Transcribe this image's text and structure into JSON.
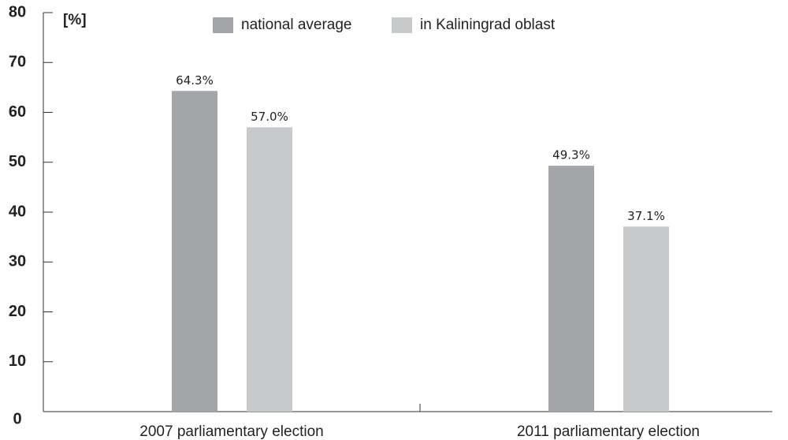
{
  "chart_data": {
    "type": "bar",
    "y_label": "[%]",
    "categories": [
      "2007 parliamentary election",
      "2011 parliamentary election"
    ],
    "series": [
      {
        "name": "national average",
        "color": "#a4a5a9",
        "values": [
          64.3,
          49.3
        ],
        "value_labels": [
          "64.3%",
          "49.3%"
        ]
      },
      {
        "name": "in Kaliningrad oblast",
        "color": "#c8c9cb",
        "values": [
          57.0,
          37.1
        ],
        "value_labels": [
          "57.0%",
          "37.1%"
        ]
      }
    ],
    "ylim": [
      0,
      80
    ],
    "yticks": [
      0,
      10,
      20,
      30,
      40,
      50,
      60,
      70,
      80
    ]
  }
}
